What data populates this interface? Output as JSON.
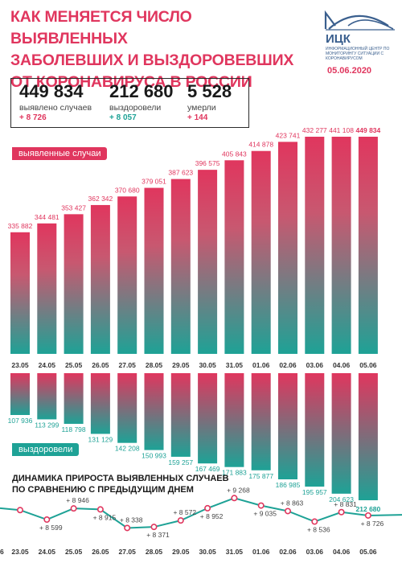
{
  "header": {
    "title_lines": [
      "КАК МЕНЯЕТСЯ ЧИСЛО ВЫЯВЛЕННЫХ",
      "ЗАБОЛЕВШИХ И ВЫЗДОРОВЕВШИХ",
      "ОТ КОРОНАВИРУСА В РОССИИ"
    ],
    "logo_abbr": "ИЦК",
    "logo_desc": "ИНФОРМАЦИОННЫЙ ЦЕНТР ПО МОНИТОРИНГУ СИТУАЦИИ С КОРОНАВИРУСОМ",
    "date": "05.06.2020"
  },
  "summary": {
    "cases": {
      "value": "449 834",
      "label": "выявлено случаев",
      "delta": "+ 8 726"
    },
    "recovered": {
      "value": "212 680",
      "label": "выздоровели",
      "delta": "+ 8 057"
    },
    "deaths": {
      "value": "5 528",
      "label": "умерли",
      "delta": "+ 144"
    }
  },
  "tags": {
    "cases": "выявленные случаи",
    "recovered": "выздоровели"
  },
  "dynamics_title": [
    "ДИНАМИКА ПРИРОСТА ВЫЯВЛЕННЫХ СЛУЧАЕВ",
    "ПО СРАВНЕНИЮ С ПРЕДЫДУЩИМ ДНЕМ"
  ],
  "colors": {
    "cases": "#e0365e",
    "recovered": "#1ea296",
    "dark": "#1a1a1a"
  },
  "chart_data": [
    {
      "type": "bar",
      "name": "cases",
      "categories": [
        "23.05",
        "24.05",
        "25.05",
        "26.05",
        "27.05",
        "28.05",
        "29.05",
        "30.05",
        "31.05",
        "01.06",
        "02.06",
        "03.06",
        "04.06",
        "05.06"
      ],
      "values": [
        335882,
        344481,
        353427,
        362342,
        370680,
        379051,
        387623,
        396575,
        405843,
        414878,
        423741,
        432277,
        441108,
        449834
      ],
      "labels": [
        "335 882",
        "344 481",
        "353 427",
        "362 342",
        "370 680",
        "379 051",
        "387 623",
        "396 575",
        "405 843",
        "414 878",
        "423 741",
        "432 277",
        "441 108",
        "449 834"
      ],
      "legend": "выявленные случаи"
    },
    {
      "type": "bar",
      "name": "recovered",
      "categories": [
        "23.05",
        "24.05",
        "25.05",
        "26.05",
        "27.05",
        "28.05",
        "29.05",
        "30.05",
        "31.05",
        "01.06",
        "02.06",
        "03.06",
        "04.06",
        "05.06"
      ],
      "values": [
        107936,
        113299,
        118798,
        131129,
        142208,
        150993,
        159257,
        167469,
        171883,
        175877,
        186985,
        195957,
        204623,
        212680
      ],
      "labels": [
        "107 936",
        "113 299",
        "118 798",
        "131 129",
        "142 208",
        "150 993",
        "159 257",
        "167 469",
        "171 883",
        "175 877",
        "186 985",
        "195 957",
        "204 623",
        "212 680"
      ],
      "legend": "выздоровели"
    },
    {
      "type": "line",
      "name": "daily_growth",
      "title": "ДИНАМИКА ПРИРОСТА ВЫЯВЛЕННЫХ СЛУЧАЕВ ПО СРАВНЕНИЮ С ПРЕДЫДУЩИМ ДНЕМ",
      "categories": [
        "23.05",
        "24.05",
        "25.05",
        "26.05",
        "27.05",
        "28.05",
        "29.05",
        "30.05",
        "31.05",
        "01.06",
        "02.06",
        "03.06",
        "04.06",
        "05.06"
      ],
      "values": [
        8894,
        8599,
        8946,
        8915,
        8338,
        8371,
        8572,
        8952,
        9268,
        9035,
        8863,
        8536,
        8831,
        8726
      ],
      "labels": [
        "",
        "+ 8 599",
        "+ 8 946",
        "+ 8 915",
        "+ 8 338",
        "+ 8 371",
        "+ 8 572",
        "+ 8 952",
        "+ 9 268",
        "+ 9 035",
        "+ 8 863",
        "+ 8 536",
        "+ 8 831",
        "+ 8 726"
      ],
      "axis_prefix_label": "6"
    }
  ]
}
